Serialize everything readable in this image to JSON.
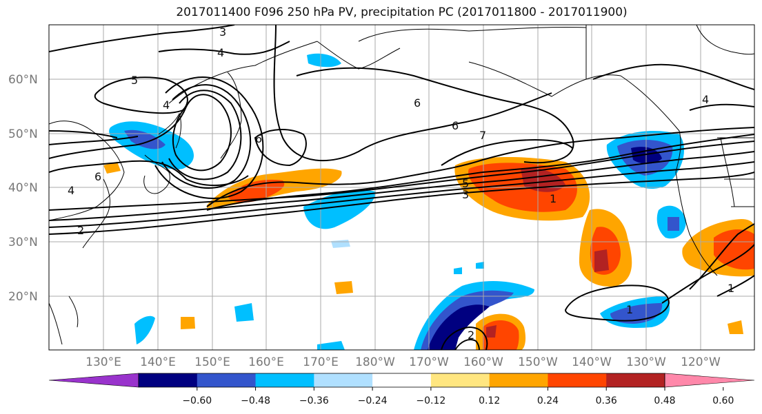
{
  "title": "2017011400 F096 250 hPa PV, precipitation PC (2017011800 - 2017011900)",
  "lat_labels": [
    "60°N",
    "50°N",
    "40°N",
    "30°N",
    "20°N"
  ],
  "lon_labels": [
    "130°E",
    "140°E",
    "150°E",
    "160°E",
    "170°E",
    "180°W",
    "170°W",
    "160°W",
    "150°W",
    "140°W",
    "130°W",
    "120°W"
  ],
  "colorbar": {
    "ticks": [
      "−0.60",
      "−0.48",
      "−0.36",
      "−0.24",
      "−0.12",
      "0.12",
      "0.24",
      "0.36",
      "0.48",
      "0.60"
    ],
    "colors": [
      "#9933cc",
      "#000080",
      "#3355cc",
      "#00bfff",
      "#b0e0ff",
      "#ffffff",
      "#ffe680",
      "#ffa500",
      "#ff4500",
      "#b22222",
      "#ff88aa"
    ]
  },
  "contour_labels": [
    "3",
    "4",
    "5",
    "4",
    "6",
    "6",
    "6",
    "7",
    "4",
    "5",
    "3",
    "1",
    "1",
    "1",
    "2",
    "2",
    "6",
    "4"
  ]
}
